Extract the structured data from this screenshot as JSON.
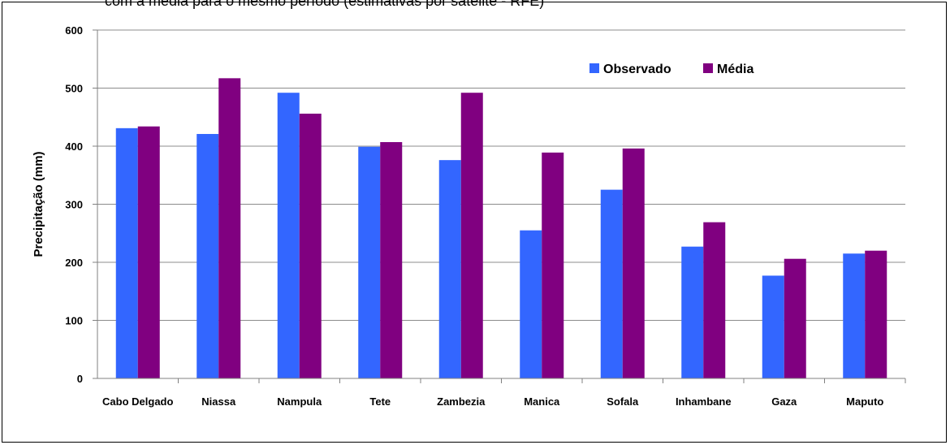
{
  "caption": "com a média para o mesmo período (estimativas por satélite - RFE)",
  "chart_data": {
    "type": "bar",
    "title": "",
    "xlabel": "",
    "ylabel": "Precipitação (mm)",
    "ylim": [
      0,
      600
    ],
    "yticks": [
      0,
      100,
      200,
      300,
      400,
      500,
      600
    ],
    "grid": true,
    "legend_position": "top-right",
    "categories": [
      "Cabo Delgado",
      "Niassa",
      "Nampula",
      "Tete",
      "Zambezia",
      "Manica",
      "Sofala",
      "Inhambane",
      "Gaza",
      "Maputo"
    ],
    "series": [
      {
        "name": "Observado",
        "color": "#3366ff",
        "values": [
          431,
          421,
          492,
          399,
          376,
          255,
          325,
          227,
          177,
          215
        ]
      },
      {
        "name": "Média",
        "color": "#800080",
        "values": [
          434,
          517,
          456,
          407,
          492,
          389,
          396,
          269,
          206,
          220
        ]
      }
    ]
  }
}
